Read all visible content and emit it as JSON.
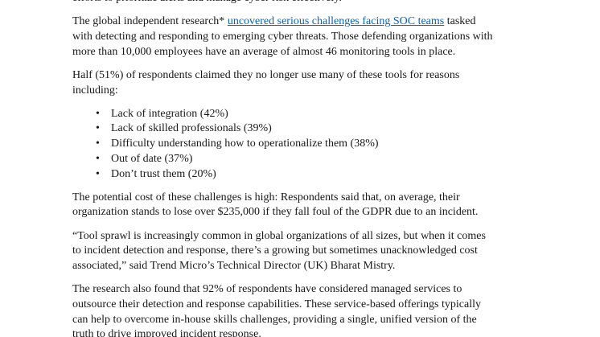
{
  "page": {
    "background_color": "#ffffff",
    "text_color": "#181818",
    "link_color": "#0563C1"
  },
  "document": {
    "clipped_top_line": "efforts to prioritize alerts and manage cyber risk effectively.",
    "research_paragraph": {
      "before_link": "The global independent research* ",
      "link_text": "uncovered serious challenges facing SOC teams",
      "after_link": " tasked\nwith detecting and responding to emerging cyber threats. Those defending organizations with\nmore than 10,000 employees have an average of almost 46 monitoring tools in place."
    },
    "half_paragraph": "Half (51%) of respondents claimed they no longer use many of these tools for reasons\nincluding:",
    "reasons_list": [
      "Lack of integration (42%)",
      "Lack of skilled professionals (39%)",
      "Difficulty understanding how to operationalize them (38%)",
      "Out of date (37%)",
      "Don’t trust them (20%)"
    ],
    "cost_paragraph": "The potential cost of these challenges is high: Respondents said that, on average, their\norganization stands to lose over $235,000 if they fall foul of the GDPR due to an incident.",
    "quote_paragraph": "“Tool sprawl is increasingly common in global organizations of all sizes, but when it comes\nto incident detection and response, there’s a growing but sometimes unacknowledged cost\nassociated,” said Trend Micro’s Technical Director (UK) Bharat Mistry.",
    "managed_services_paragraph": "The research also found that 92% of respondents have considered managed services to\noutsource their detection and response capabilities. These service-based offerings typically\ncan help to overcome in-house skills challenges, providing a single, unified version of the\ntruth to drive improved incident response."
  }
}
